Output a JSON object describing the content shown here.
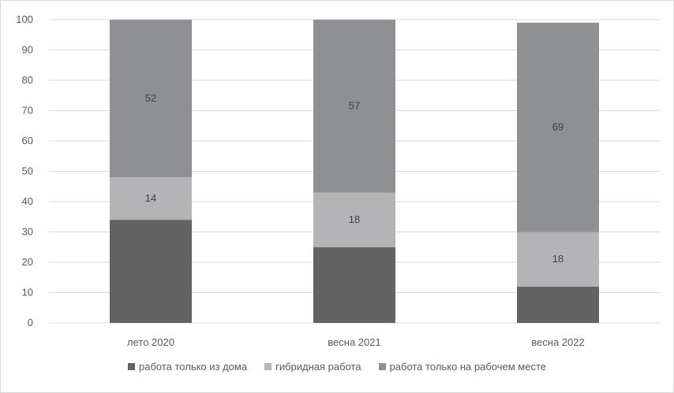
{
  "chart_data": {
    "type": "bar",
    "stacked": true,
    "categories": [
      "лето 2020",
      "весна 2021",
      "весна 2022"
    ],
    "series": [
      {
        "name": "работа только из дома",
        "values": [
          34,
          25,
          12
        ],
        "color": "#636363",
        "show_labels": false
      },
      {
        "name": "гибридная работа",
        "values": [
          14,
          18,
          18
        ],
        "color": "#b4b4b6",
        "show_labels": true
      },
      {
        "name": "работа только на рабочем месте",
        "values": [
          52,
          57,
          69
        ],
        "color": "#8f9093",
        "show_labels": true
      }
    ],
    "ylim": [
      0,
      100
    ],
    "y_ticks": [
      0,
      10,
      20,
      30,
      40,
      50,
      60,
      70,
      80,
      90,
      100
    ],
    "grid": true,
    "legend_position": "bottom"
  }
}
